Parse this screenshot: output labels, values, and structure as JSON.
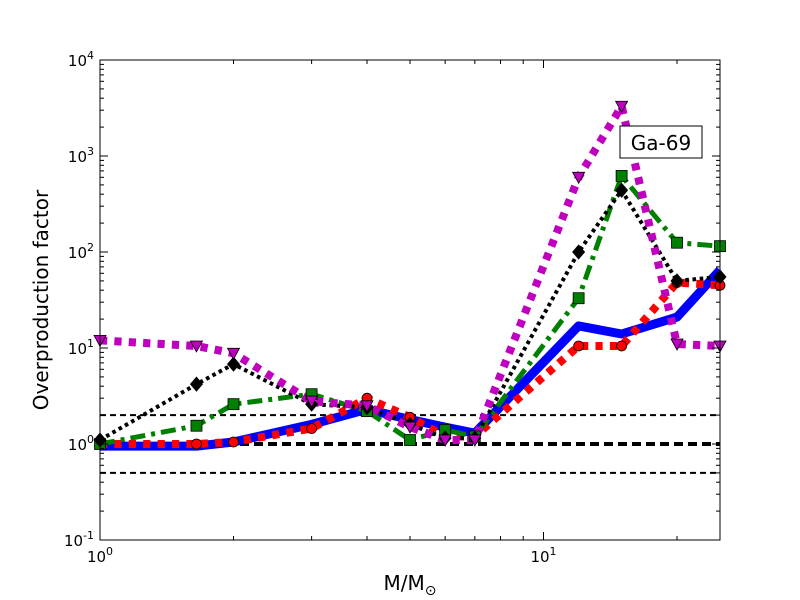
{
  "chart_data": {
    "type": "line",
    "title": "",
    "xlabel": "M/M",
    "xlabel_sub": "⊙",
    "ylabel": "Overproduction factor",
    "xscale": "log",
    "yscale": "log",
    "xlim": [
      1,
      25
    ],
    "ylim": [
      0.1,
      10000
    ],
    "xticks": [
      {
        "value": 1,
        "base": "10",
        "exp": "0"
      },
      {
        "value": 10,
        "base": "10",
        "exp": "1"
      }
    ],
    "yticks": [
      {
        "value": 0.1,
        "base": "10",
        "exp": "-1"
      },
      {
        "value": 1,
        "base": "10",
        "exp": "0"
      },
      {
        "value": 10,
        "base": "10",
        "exp": "1"
      },
      {
        "value": 100,
        "base": "10",
        "exp": "2"
      },
      {
        "value": 1000,
        "base": "10",
        "exp": "3"
      },
      {
        "value": 10000,
        "base": "10",
        "exp": "4"
      }
    ],
    "annotation": "Ga-69",
    "reference_lines": [
      {
        "y": 2.0,
        "style": "dashed-thin"
      },
      {
        "y": 1.0,
        "style": "dashed-thick"
      },
      {
        "y": 0.5,
        "style": "dashed-thin"
      }
    ],
    "series": [
      {
        "color": "#0000ff",
        "dash": "solid",
        "width": 9,
        "marker": "none",
        "x": [
          1,
          1.65,
          2,
          3,
          4,
          5,
          6,
          7,
          12,
          15,
          20,
          25
        ],
        "y": [
          0.95,
          0.95,
          1.05,
          1.6,
          2.3,
          1.8,
          1.5,
          1.3,
          17,
          14,
          21,
          65
        ]
      },
      {
        "color": "#ff0000",
        "dash": "dotted",
        "width": 8,
        "marker": "circle",
        "x": [
          1,
          1.65,
          2,
          3,
          4,
          5,
          6,
          7,
          12,
          15,
          20,
          25
        ],
        "y": [
          1.0,
          1.0,
          1.05,
          1.45,
          3.0,
          1.9,
          1.2,
          1.2,
          10.5,
          10.5,
          48,
          45
        ]
      },
      {
        "color": "#008000",
        "dash": "dashdot",
        "width": 5,
        "marker": "square",
        "x": [
          1,
          1.65,
          2,
          3,
          4,
          5,
          6,
          7,
          12,
          15,
          20,
          25
        ],
        "y": [
          1.0,
          1.55,
          2.6,
          3.3,
          2.2,
          1.1,
          1.4,
          1.2,
          33,
          620,
          125,
          115
        ]
      },
      {
        "color": "#000000",
        "dash": "dotted",
        "width": 4,
        "marker": "diamond",
        "x": [
          1,
          1.65,
          2,
          3,
          4,
          5,
          6,
          7,
          12,
          15,
          20,
          25
        ],
        "y": [
          1.1,
          4.2,
          6.8,
          2.6,
          2.4,
          1.6,
          1.15,
          1.15,
          100,
          440,
          50,
          55
        ]
      },
      {
        "color": "#bf00bf",
        "dash": "dotted",
        "width": 8,
        "marker": "triangle-down",
        "x": [
          1,
          1.65,
          2,
          3,
          4,
          5,
          6,
          7,
          12,
          15,
          20,
          25
        ],
        "y": [
          12,
          10.5,
          8.8,
          2.8,
          2.5,
          1.5,
          1.1,
          1.1,
          600,
          3300,
          11,
          10.5
        ]
      }
    ]
  }
}
